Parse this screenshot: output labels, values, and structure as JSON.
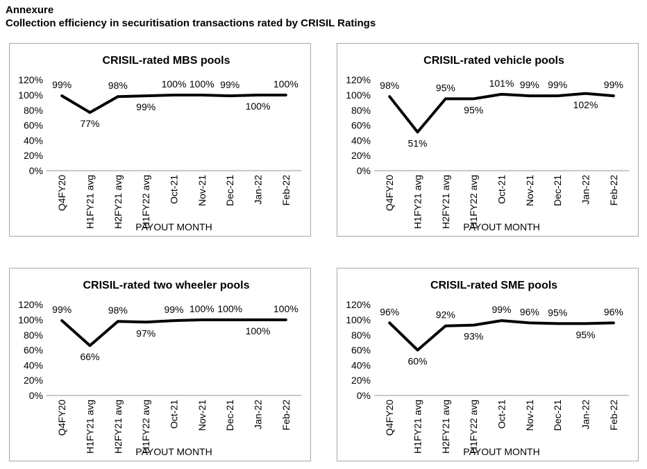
{
  "header": {
    "line1": "Annexure",
    "line2": "Collection efficiency in securitisation transactions rated by CRISIL Ratings"
  },
  "axis": {
    "y_tick_labels": [
      "120%",
      "100%",
      "80%",
      "60%",
      "40%",
      "20%",
      "0%"
    ],
    "y_min": 0,
    "y_max": 120,
    "y_step": 20,
    "grid": "off",
    "legend": "none"
  },
  "chart_data": [
    {
      "type": "line",
      "title": "CRISIL-rated MBS pools",
      "categories": [
        "Q4FY20",
        "H1FY21 avg",
        "H2FY21 avg",
        "H1FY22 avg",
        "Oct-21",
        "Nov-21",
        "Dec-21",
        "Jan-22",
        "Feb-22"
      ],
      "values": [
        99,
        77,
        98,
        99,
        100,
        100,
        99,
        100,
        100
      ],
      "point_labels": [
        "99%",
        "77%",
        "98%",
        "99%",
        "100%",
        "100%",
        "99%",
        "100%",
        "100%"
      ],
      "label_position": [
        "above",
        "below",
        "above",
        "below",
        "above",
        "above",
        "above",
        "below",
        "above"
      ],
      "xlabel": "PAYOUT MONTH",
      "ylabel": "",
      "ylim": [
        0,
        120
      ]
    },
    {
      "type": "line",
      "title": "CRISIL-rated vehicle pools",
      "categories": [
        "Q4FY20",
        "H1FY21 avg",
        "H2FY21 avg",
        "H1FY22 avg",
        "Oct-21",
        "Nov-21",
        "Dec-21",
        "Jan-22",
        "Feb-22"
      ],
      "values": [
        98,
        51,
        95,
        95,
        101,
        99,
        99,
        102,
        99
      ],
      "point_labels": [
        "98%",
        "51%",
        "95%",
        "95%",
        "101%",
        "99%",
        "99%",
        "102%",
        "99%"
      ],
      "label_position": [
        "above",
        "below",
        "above",
        "below",
        "above",
        "above",
        "above",
        "below",
        "above"
      ],
      "xlabel": "PAYOUT MONTH",
      "ylabel": "",
      "ylim": [
        0,
        120
      ]
    },
    {
      "type": "line",
      "title": "CRISIL-rated two wheeler pools",
      "categories": [
        "Q4FY20",
        "H1FY21 avg",
        "H2FY21 avg",
        "H1FY22 avg",
        "Oct-21",
        "Nov-21",
        "Dec-21",
        "Jan-22",
        "Feb-22"
      ],
      "values": [
        99,
        66,
        98,
        97,
        99,
        100,
        100,
        100,
        100
      ],
      "point_labels": [
        "99%",
        "66%",
        "98%",
        "97%",
        "99%",
        "100%",
        "100%",
        "100%",
        "100%"
      ],
      "label_position": [
        "above",
        "below",
        "above",
        "below",
        "above",
        "above",
        "above",
        "below",
        "above"
      ],
      "xlabel": "PAYOUT MONTH",
      "ylabel": "",
      "ylim": [
        0,
        120
      ]
    },
    {
      "type": "line",
      "title": "CRISIL-rated SME pools",
      "categories": [
        "Q4FY20",
        "H1FY21 avg",
        "H2FY21 avg",
        "H1FY22 avg",
        "Oct-21",
        "Nov-21",
        "Dec-21",
        "Jan-22",
        "Feb-22"
      ],
      "values": [
        96,
        60,
        92,
        93,
        99,
        96,
        95,
        95,
        96
      ],
      "point_labels": [
        "96%",
        "60%",
        "92%",
        "93%",
        "99%",
        "96%",
        "95%",
        "95%",
        "96%"
      ],
      "label_position": [
        "above",
        "below",
        "above",
        "below",
        "above",
        "above",
        "above",
        "below",
        "above"
      ],
      "xlabel": "PAYOUT MONTH",
      "ylabel": "",
      "ylim": [
        0,
        120
      ]
    }
  ],
  "colors": {
    "line": "#000000",
    "axis_line": "#c8c8c8",
    "panel_border": "#a8a8a8",
    "text": "#000000",
    "background": "#ffffff"
  }
}
